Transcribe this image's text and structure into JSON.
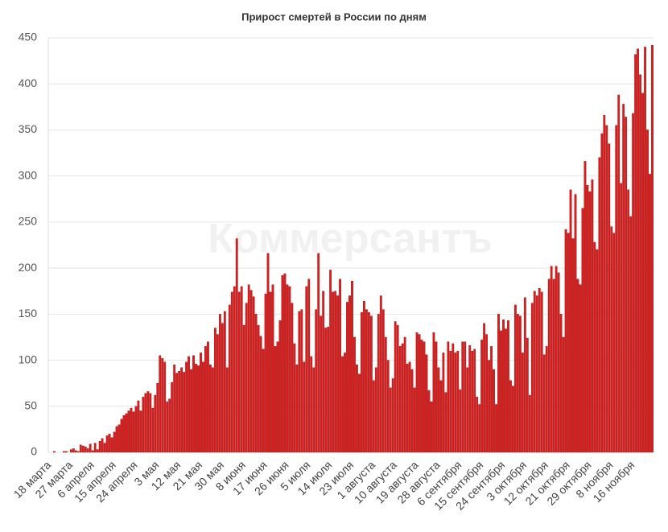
{
  "chart_data": {
    "type": "bar",
    "title": "Прирост смертей в России по дням",
    "watermark": "Коммерсантъ",
    "categories": [
      "18 марта",
      null,
      null,
      null,
      null,
      null,
      null,
      null,
      null,
      "27 марта",
      null,
      null,
      null,
      null,
      null,
      null,
      null,
      null,
      "6 апреля",
      null,
      null,
      null,
      null,
      null,
      null,
      null,
      null,
      "15 апреля",
      null,
      null,
      null,
      null,
      null,
      null,
      null,
      null,
      "24 апреля",
      null,
      null,
      null,
      null,
      null,
      null,
      null,
      null,
      "3 мая",
      null,
      null,
      null,
      null,
      null,
      null,
      null,
      null,
      "12 мая",
      null,
      null,
      null,
      null,
      null,
      null,
      null,
      null,
      "21 мая",
      null,
      null,
      null,
      null,
      null,
      null,
      null,
      null,
      "30 мая",
      null,
      null,
      null,
      null,
      null,
      null,
      null,
      null,
      "8 июня",
      null,
      null,
      null,
      null,
      null,
      null,
      null,
      null,
      "17 июня",
      null,
      null,
      null,
      null,
      null,
      null,
      null,
      null,
      "26 июня",
      null,
      null,
      null,
      null,
      null,
      null,
      null,
      null,
      "5 июля",
      null,
      null,
      null,
      null,
      null,
      null,
      null,
      null,
      "14 июля",
      null,
      null,
      null,
      null,
      null,
      null,
      null,
      null,
      "23 июля",
      null,
      null,
      null,
      null,
      null,
      null,
      null,
      null,
      "1 августа",
      null,
      null,
      null,
      null,
      null,
      null,
      null,
      null,
      "10 августа",
      null,
      null,
      null,
      null,
      null,
      null,
      null,
      null,
      "19 августа",
      null,
      null,
      null,
      null,
      null,
      null,
      null,
      null,
      "28 августа",
      null,
      null,
      null,
      null,
      null,
      null,
      null,
      null,
      "6 сентября",
      null,
      null,
      null,
      null,
      null,
      null,
      null,
      null,
      "15 сентября",
      null,
      null,
      null,
      null,
      null,
      null,
      null,
      null,
      "24 сентября",
      null,
      null,
      null,
      null,
      null,
      null,
      null,
      null,
      "3 октября",
      null,
      null,
      null,
      null,
      null,
      null,
      null,
      null,
      "12 октября",
      null,
      null,
      null,
      null,
      null,
      null,
      null,
      null,
      "21 октября",
      null,
      null,
      null,
      null,
      null,
      null,
      null,
      null,
      "29 октября",
      null,
      null,
      null,
      null,
      null,
      null,
      null,
      null,
      "8 ноября",
      null,
      null,
      null,
      null,
      null,
      null,
      null,
      null,
      "16 ноября",
      null,
      null,
      null,
      null,
      null,
      null,
      null,
      null
    ],
    "values": [
      0,
      0,
      1,
      0,
      0,
      0,
      1,
      1,
      0,
      3,
      4,
      2,
      1,
      8,
      7,
      6,
      4,
      9,
      2,
      10,
      3,
      12,
      15,
      10,
      18,
      20,
      16,
      22,
      28,
      30,
      36,
      40,
      42,
      45,
      48,
      44,
      50,
      56,
      45,
      60,
      64,
      66,
      64,
      48,
      62,
      75,
      105,
      102,
      98,
      55,
      58,
      76,
      95,
      86,
      88,
      92,
      87,
      98,
      104,
      90,
      105,
      96,
      94,
      108,
      98,
      115,
      120,
      95,
      92,
      135,
      128,
      150,
      140,
      153,
      92,
      160,
      174,
      180,
      232,
      174,
      180,
      138,
      162,
      182,
      176,
      169,
      150,
      138,
      126,
      112,
      172,
      216,
      174,
      182,
      115,
      120,
      143,
      192,
      194,
      182,
      180,
      162,
      118,
      95,
      153,
      155,
      98,
      180,
      188,
      104,
      92,
      155,
      216,
      148,
      175,
      135,
      136,
      198,
      174,
      175,
      170,
      188,
      104,
      108,
      163,
      170,
      186,
      125,
      95,
      85,
      152,
      164,
      155,
      152,
      148,
      78,
      92,
      150,
      170,
      155,
      125,
      100,
      70,
      80,
      142,
      138,
      115,
      118,
      125,
      96,
      98,
      90,
      70,
      130,
      128,
      122,
      120,
      106,
      67,
      55,
      130,
      120,
      92,
      78,
      108,
      65,
      120,
      110,
      118,
      108,
      110,
      68,
      120,
      120,
      92,
      116,
      110,
      112,
      60,
      52,
      122,
      140,
      128,
      100,
      115,
      90,
      52,
      150,
      132,
      144,
      134,
      143,
      78,
      72,
      160,
      150,
      148,
      108,
      168,
      124,
      62,
      162,
      175,
      170,
      178,
      174,
      106,
      115,
      188,
      202,
      188,
      202,
      195,
      150,
      125,
      242,
      238,
      285,
      232,
      280,
      188,
      182,
      265,
      316,
      290,
      283,
      296,
      228,
      220,
      320,
      346,
      366,
      355,
      335,
      245,
      238,
      355,
      388,
      292,
      378,
      364,
      285,
      256,
      368,
      432,
      438,
      410,
      390,
      440,
      350,
      302,
      442
    ],
    "color": "#d71f1f",
    "ylim": [
      0,
      450
    ],
    "yticks": [
      0,
      50,
      100,
      150,
      200,
      250,
      300,
      350,
      400,
      450
    ],
    "grid": true
  }
}
